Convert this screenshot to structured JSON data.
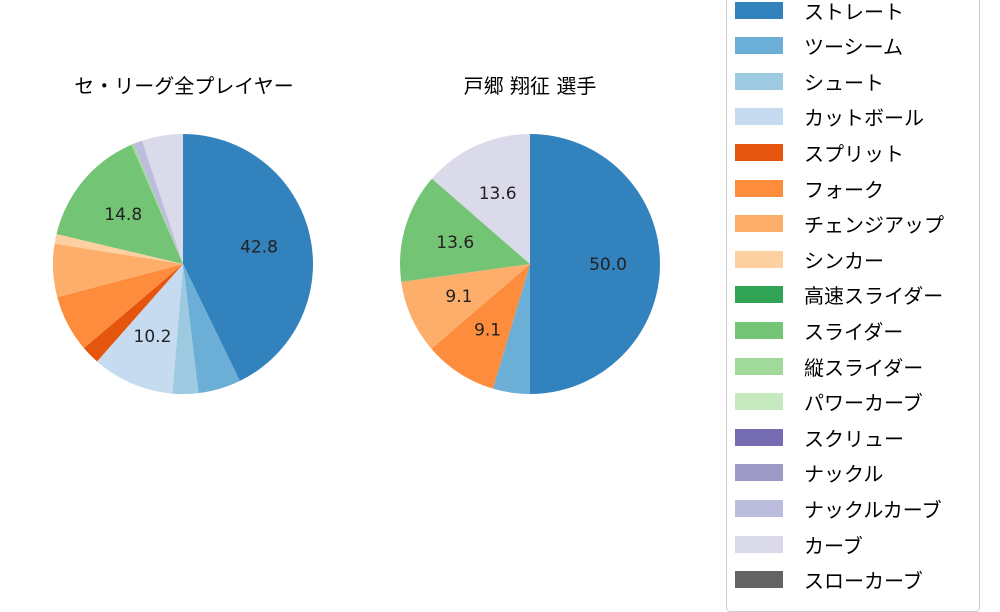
{
  "chart_data": [
    {
      "type": "pie",
      "title": "セ・リーグ全プレイヤー",
      "startangle": 90,
      "direction": "clockwise",
      "slices": [
        {
          "label": "ストレート",
          "value": 42.8,
          "color": "#3182bd",
          "show_label": true
        },
        {
          "label": "ツーシーム",
          "value": 5.3,
          "color": "#6baed6",
          "show_label": false
        },
        {
          "label": "シュート",
          "value": 3.2,
          "color": "#9ecae1",
          "show_label": false
        },
        {
          "label": "カットボール",
          "value": 10.2,
          "color": "#c6dbef",
          "show_label": true
        },
        {
          "label": "スプリット",
          "value": 2.3,
          "color": "#e6550d",
          "show_label": false
        },
        {
          "label": "フォーク",
          "value": 7.1,
          "color": "#fd8d3c",
          "show_label": false
        },
        {
          "label": "チェンジアップ",
          "value": 6.6,
          "color": "#fdae6b",
          "show_label": false
        },
        {
          "label": "シンカー",
          "value": 1.2,
          "color": "#fdd0a2",
          "show_label": false
        },
        {
          "label": "スライダー",
          "value": 14.8,
          "color": "#74c476",
          "show_label": true
        },
        {
          "label": "縦スライダー",
          "value": 0.3,
          "color": "#a1d99b",
          "show_label": false
        },
        {
          "label": "ナックルカーブ",
          "value": 1.1,
          "color": "#bcbddc",
          "show_label": false
        },
        {
          "label": "カーブ",
          "value": 5.1,
          "color": "#dadaeb",
          "show_label": false
        }
      ]
    },
    {
      "type": "pie",
      "title": "戸郷 翔征  選手",
      "startangle": 90,
      "direction": "clockwise",
      "slices": [
        {
          "label": "ストレート",
          "value": 50.0,
          "color": "#3182bd",
          "show_label": true
        },
        {
          "label": "ツーシーム",
          "value": 4.6,
          "color": "#6baed6",
          "show_label": false
        },
        {
          "label": "フォーク",
          "value": 9.1,
          "color": "#fd8d3c",
          "show_label": true
        },
        {
          "label": "チェンジアップ",
          "value": 9.1,
          "color": "#fdae6b",
          "show_label": true
        },
        {
          "label": "スライダー",
          "value": 13.6,
          "color": "#74c476",
          "show_label": true
        },
        {
          "label": "カーブ",
          "value": 13.6,
          "color": "#dadaeb",
          "show_label": true
        }
      ]
    }
  ],
  "titles": {
    "left": "セ・リーグ全プレイヤー",
    "right": "戸郷 翔征  選手"
  },
  "legend": {
    "items": [
      {
        "label": "ストレート",
        "color": "#3182bd"
      },
      {
        "label": "ツーシーム",
        "color": "#6baed6"
      },
      {
        "label": "シュート",
        "color": "#9ecae1"
      },
      {
        "label": "カットボール",
        "color": "#c6dbef"
      },
      {
        "label": "スプリット",
        "color": "#e6550d"
      },
      {
        "label": "フォーク",
        "color": "#fd8d3c"
      },
      {
        "label": "チェンジアップ",
        "color": "#fdae6b"
      },
      {
        "label": "シンカー",
        "color": "#fdd0a2"
      },
      {
        "label": "高速スライダー",
        "color": "#31a354"
      },
      {
        "label": "スライダー",
        "color": "#74c476"
      },
      {
        "label": "縦スライダー",
        "color": "#a1d99b"
      },
      {
        "label": "パワーカーブ",
        "color": "#c7e9c0"
      },
      {
        "label": "スクリュー",
        "color": "#756bb1"
      },
      {
        "label": "ナックル",
        "color": "#9e9ac8"
      },
      {
        "label": "ナックルカーブ",
        "color": "#bcbddc"
      },
      {
        "label": "カーブ",
        "color": "#dadaeb"
      },
      {
        "label": "スローカーブ",
        "color": "#636363"
      }
    ]
  }
}
